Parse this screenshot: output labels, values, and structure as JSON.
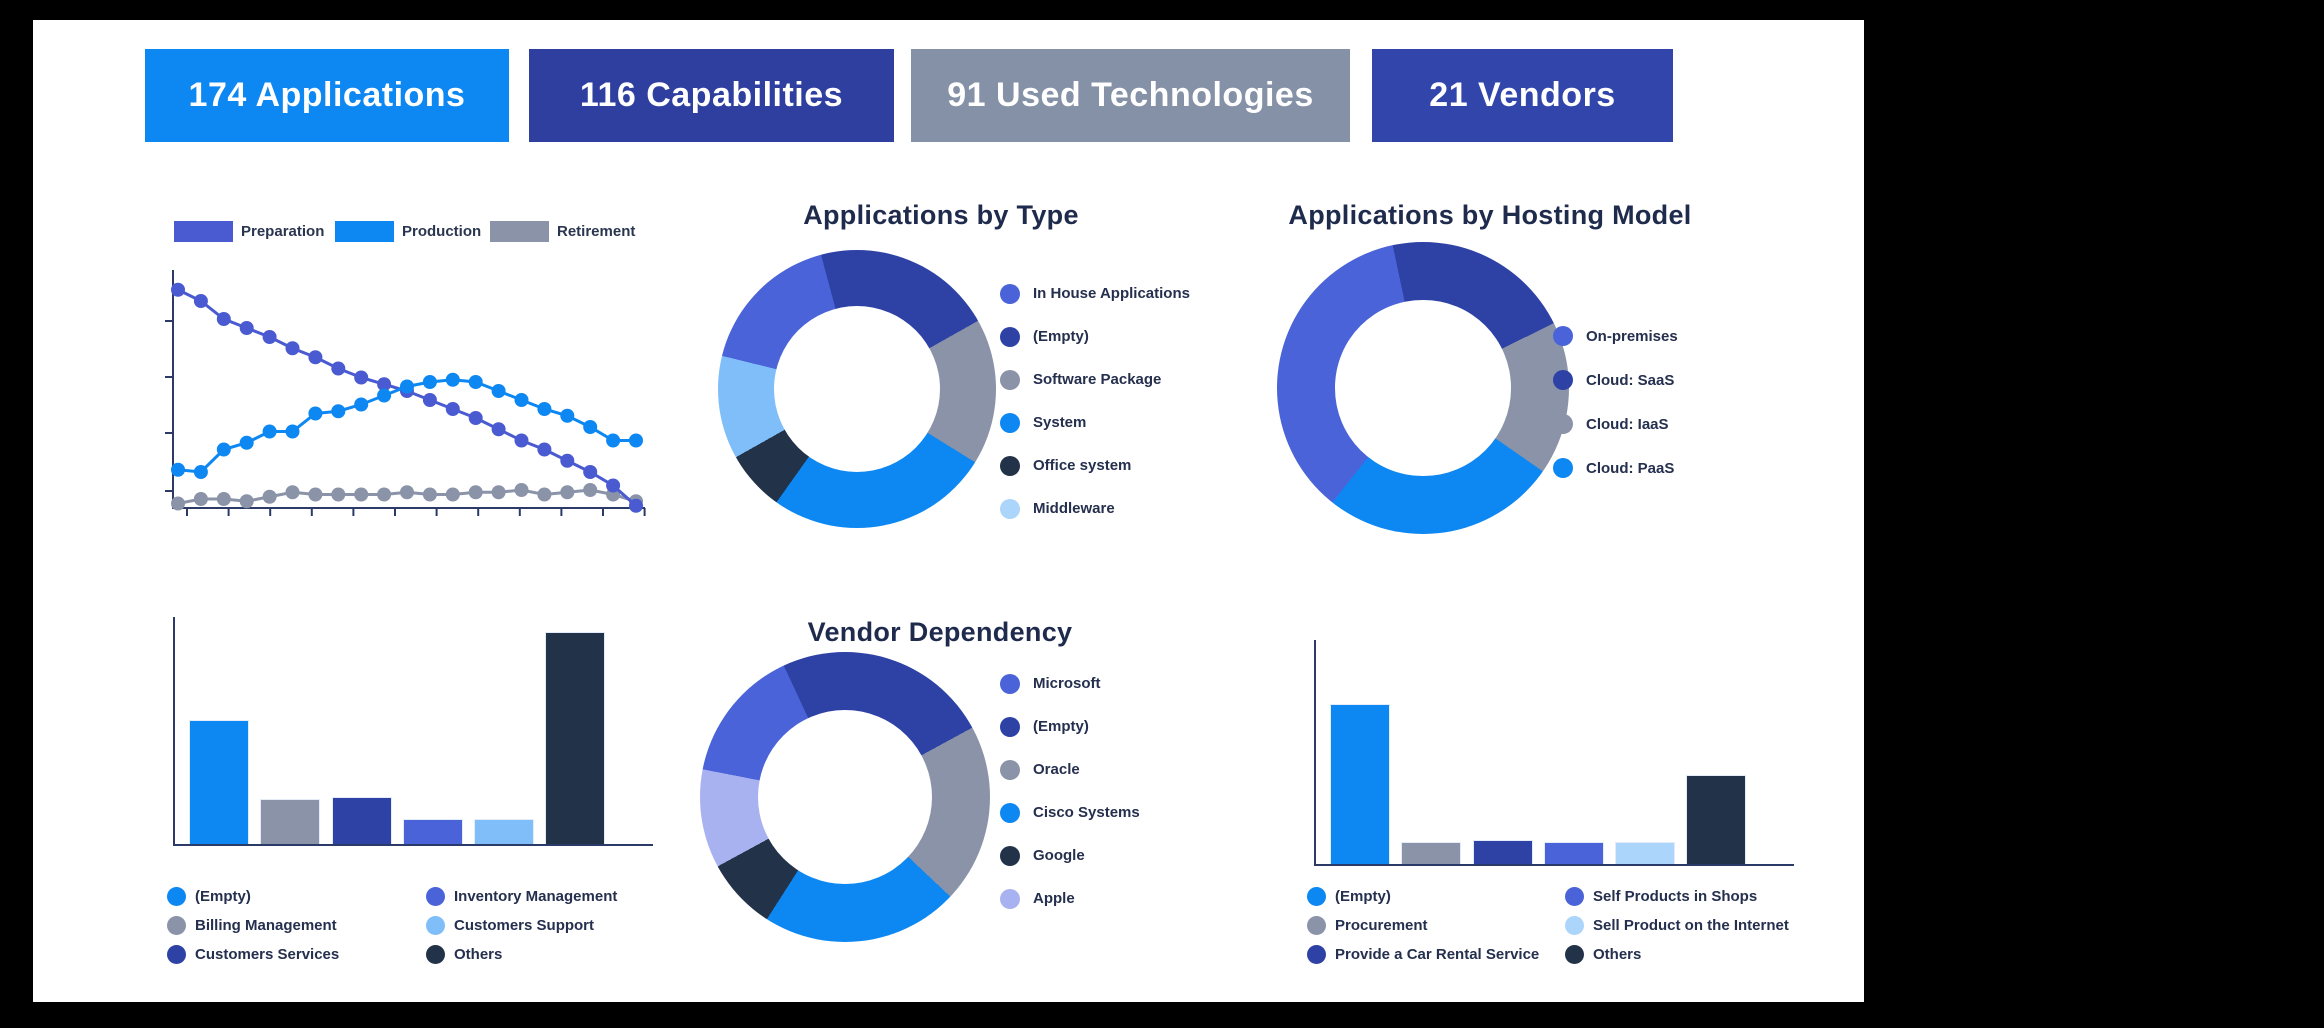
{
  "palette": {
    "bright_blue": "#0d87f2",
    "medium_blue": "#4a63d8",
    "line_blue": "#4a5ad0",
    "indigo": "#2e41a5",
    "gray": "#8a93a8",
    "navy": "#223248",
    "light_blue": "#7fbef8",
    "pale_blue": "#abd5fb",
    "periwinkle": "#a9b2f0",
    "axis": "#2b3a67",
    "title_text": "#1f2b4d",
    "card_text": "#ffffff"
  },
  "kpi_cards": [
    {
      "label": "174 Applications",
      "bg": "#0d87f2"
    },
    {
      "label": "116 Capabilities",
      "bg": "#2e3fa0"
    },
    {
      "label": "91 Used Technologies",
      "bg": "#8591a6"
    },
    {
      "label": "21 Vendors",
      "bg": "#3245ab"
    }
  ],
  "chart_data": [
    {
      "id": "lifecycle",
      "type": "line",
      "title": "",
      "legend_position": "top",
      "axis_labels_visible": false,
      "x_tick_count": 12,
      "y_tick_count": 4,
      "ylim": [
        0,
        100
      ],
      "x": [
        1,
        2,
        3,
        4,
        5,
        6,
        7,
        8,
        9,
        10,
        11,
        12,
        13,
        14,
        15,
        16,
        17,
        18,
        19,
        20,
        21
      ],
      "series": [
        {
          "name": "Preparation",
          "color": "#4a5ad0",
          "values": [
            97,
            92,
            84,
            80,
            76,
            71,
            67,
            62,
            58,
            55,
            52,
            48,
            44,
            40,
            35,
            30,
            26,
            21,
            16,
            10,
            1
          ]
        },
        {
          "name": "Production",
          "color": "#0d87f2",
          "values": [
            17,
            16,
            26,
            29,
            34,
            34,
            42,
            43,
            46,
            50,
            54,
            56,
            57,
            56,
            52,
            48,
            44,
            41,
            36,
            30,
            30
          ]
        },
        {
          "name": "Retirement",
          "color": "#8a93a8",
          "values": [
            2,
            4,
            4,
            3,
            5,
            7,
            6,
            6,
            6,
            6,
            7,
            6,
            6,
            7,
            7,
            8,
            6,
            7,
            8,
            6,
            3
          ]
        }
      ]
    },
    {
      "id": "applications_by_type",
      "type": "donut",
      "title": "Applications by Type",
      "start_angle_deg": -15,
      "legend_position": "right",
      "slices_clockwise_from_top": [
        {
          "label": "(Empty)",
          "pct": 21,
          "color": "#2e41a5"
        },
        {
          "label": "Software Package",
          "pct": 17,
          "color": "#8a93a8"
        },
        {
          "label": "System",
          "pct": 26,
          "color": "#0d87f2"
        },
        {
          "label": "Office system",
          "pct": 7,
          "color": "#223248"
        },
        {
          "label": "Middleware",
          "pct": 12,
          "color": "#7fbef8"
        },
        {
          "label": "In House Applications",
          "pct": 17,
          "color": "#4a63d8"
        }
      ],
      "legend": [
        {
          "label": "In House Applications",
          "color": "#4a63d8"
        },
        {
          "label": "(Empty)",
          "color": "#2e41a5"
        },
        {
          "label": "Software Package",
          "color": "#8a93a8"
        },
        {
          "label": "System",
          "color": "#0d87f2"
        },
        {
          "label": "Office system",
          "color": "#223248"
        },
        {
          "label": "Middleware",
          "color": "#abd5fb"
        }
      ]
    },
    {
      "id": "applications_by_hosting_model",
      "type": "donut",
      "title": "Applications by Hosting Model",
      "start_angle_deg": -12,
      "legend_position": "right",
      "slices_clockwise_from_top": [
        {
          "label": "Cloud: SaaS",
          "pct": 21,
          "color": "#2e41a5"
        },
        {
          "label": "Cloud: IaaS",
          "pct": 17,
          "color": "#8a93a8"
        },
        {
          "label": "Cloud: PaaS",
          "pct": 26,
          "color": "#0d87f2"
        },
        {
          "label": "On-premises",
          "pct": 36,
          "color": "#4a63d8"
        }
      ],
      "legend": [
        {
          "label": "On-premises",
          "color": "#4a63d8"
        },
        {
          "label": "Cloud: SaaS",
          "color": "#2e41a5"
        },
        {
          "label": "Cloud: IaaS",
          "color": "#8a93a8"
        },
        {
          "label": "Cloud: PaaS",
          "color": "#0d87f2"
        }
      ]
    },
    {
      "id": "vendor_dependency",
      "type": "donut",
      "title": "Vendor Dependency",
      "start_angle_deg": -25,
      "legend_position": "right",
      "slices_clockwise_from_top": [
        {
          "label": "(Empty)",
          "pct": 24,
          "color": "#2e41a5"
        },
        {
          "label": "Oracle",
          "pct": 20,
          "color": "#8a93a8"
        },
        {
          "label": "Cisco Systems",
          "pct": 22,
          "color": "#0d87f2"
        },
        {
          "label": "Google",
          "pct": 8,
          "color": "#223248"
        },
        {
          "label": "Apple",
          "pct": 11,
          "color": "#a9b2f0"
        },
        {
          "label": "Microsoft",
          "pct": 15,
          "color": "#4a63d8"
        }
      ],
      "legend": [
        {
          "label": "Microsoft",
          "color": "#4a63d8"
        },
        {
          "label": "(Empty)",
          "color": "#2e41a5"
        },
        {
          "label": "Oracle",
          "color": "#8a93a8"
        },
        {
          "label": "Cisco Systems",
          "color": "#0d87f2"
        },
        {
          "label": "Google",
          "color": "#223248"
        },
        {
          "label": "Apple",
          "color": "#a9b2f0"
        }
      ]
    },
    {
      "id": "applications_by_capability",
      "type": "bar",
      "title": "",
      "axis_labels_visible": false,
      "ylim": [
        0,
        100
      ],
      "legend_columns": 2,
      "categories": [
        "(Empty)",
        "Billing Management",
        "Customers Services",
        "Inventory Management",
        "Customers Support",
        "Others"
      ],
      "values": [
        55,
        20,
        21,
        11,
        11,
        94
      ],
      "colors": [
        "#0d87f2",
        "#8a93a8",
        "#2e41a5",
        "#4a63d8",
        "#7fbef8",
        "#223248"
      ]
    },
    {
      "id": "applications_by_business_process",
      "type": "bar",
      "title": "",
      "axis_labels_visible": false,
      "ylim": [
        0,
        100
      ],
      "legend_columns": 2,
      "categories": [
        "(Empty)",
        "Procurement",
        "Provide a Car Rental Service",
        "Self Products in Shops",
        "Sell Product on the Internet",
        "Others"
      ],
      "values": [
        72,
        10,
        11,
        10,
        10,
        40
      ],
      "colors": [
        "#0d87f2",
        "#8a93a8",
        "#2e41a5",
        "#4a63d8",
        "#abd5fb",
        "#223248"
      ]
    }
  ]
}
